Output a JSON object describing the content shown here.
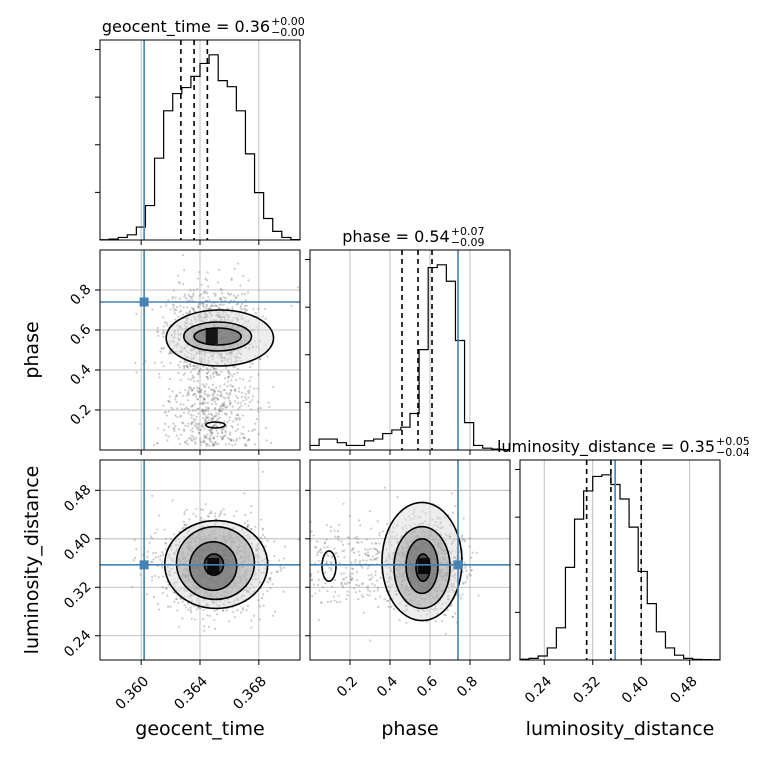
{
  "chart_data": {
    "type": "corner",
    "parameters": [
      {
        "name": "geocent_time",
        "label": "geocent_time",
        "range": [
          0.3572,
          0.3708
        ],
        "ticks": [
          0.36,
          0.364,
          0.368
        ],
        "tick_labels": [
          "0.360",
          "0.364",
          "0.368"
        ],
        "truth": 0.3602,
        "title": {
          "main": "geocent_time = 0.36",
          "plus": "+0.00",
          "minus": "−0.00"
        },
        "quantiles": [
          0.3627,
          0.3636,
          0.3645
        ],
        "histogram": [
          0.3,
          1,
          3,
          6,
          15,
          40,
          95,
          150,
          170,
          177,
          190,
          205,
          215,
          185,
          178,
          150,
          100,
          55,
          25,
          10,
          3,
          0.5
        ]
      },
      {
        "name": "phase",
        "label": "phase",
        "range": [
          0.0,
          1.0
        ],
        "ticks": [
          0.2,
          0.4,
          0.6,
          0.8
        ],
        "tick_labels": [
          "0.2",
          "0.4",
          "0.6",
          "0.8"
        ],
        "truth": 0.74,
        "title": {
          "main": "phase = 0.54",
          "plus": "+0.07",
          "minus": "−0.09"
        },
        "quantiles": [
          0.46,
          0.54,
          0.61
        ],
        "histogram": [
          5,
          12,
          12,
          8,
          5,
          5,
          10,
          12,
          18,
          22,
          25,
          40,
          110,
          200,
          203,
          185,
          120,
          30,
          5,
          2,
          1,
          0.5
        ]
      },
      {
        "name": "luminosity_distance",
        "label": "luminosity_distance",
        "range": [
          0.2,
          0.53
        ],
        "ticks": [
          0.24,
          0.32,
          0.4,
          0.48
        ],
        "tick_labels": [
          "0.24",
          "0.32",
          "0.40",
          "0.48"
        ],
        "truth": 0.357,
        "title": {
          "main": "luminosity_distance = 0.35",
          "plus": "+0.05",
          "minus": "−0.04"
        },
        "quantiles": [
          0.31,
          0.35,
          0.4
        ],
        "histogram": [
          1,
          2,
          5,
          15,
          40,
          115,
          175,
          210,
          228,
          230,
          218,
          200,
          165,
          110,
          70,
          35,
          15,
          6,
          2,
          0.8,
          0.5,
          0.3
        ]
      }
    ],
    "contours_2d": [
      {
        "x": "geocent_time",
        "y": "phase",
        "center": [
          0.3648,
          0.57
        ],
        "spread": [
          0.0014,
          0.11
        ],
        "contour_levels": [
          [
            0.3636,
            0.3668,
            0.525,
            0.61
          ],
          [
            0.3629,
            0.3675,
            0.495,
            0.64
          ],
          [
            0.3617,
            0.369,
            0.42,
            0.7
          ]
        ],
        "secondary_island": [
          0.3644,
          0.3657,
          0.11,
          0.14
        ]
      },
      {
        "x": "geocent_time",
        "y": "luminosity_distance",
        "center": [
          0.3649,
          0.355
        ],
        "spread": [
          0.0016,
          0.033
        ],
        "contour_levels": [
          [
            0.3643,
            0.3656,
            0.34,
            0.375
          ],
          [
            0.3633,
            0.3665,
            0.315,
            0.395
          ],
          [
            0.3624,
            0.3677,
            0.3,
            0.42
          ],
          [
            0.3616,
            0.3686,
            0.285,
            0.43
          ]
        ]
      },
      {
        "x": "phase",
        "y": "luminosity_distance",
        "center": [
          0.57,
          0.355
        ],
        "spread": [
          0.09,
          0.033
        ],
        "contour_levels": [
          [
            0.53,
            0.6,
            0.33,
            0.375
          ],
          [
            0.48,
            0.64,
            0.31,
            0.4
          ],
          [
            0.42,
            0.7,
            0.285,
            0.42
          ],
          [
            0.36,
            0.76,
            0.265,
            0.46
          ]
        ],
        "secondary_island": [
          0.06,
          0.13,
          0.33,
          0.38
        ]
      }
    ]
  }
}
